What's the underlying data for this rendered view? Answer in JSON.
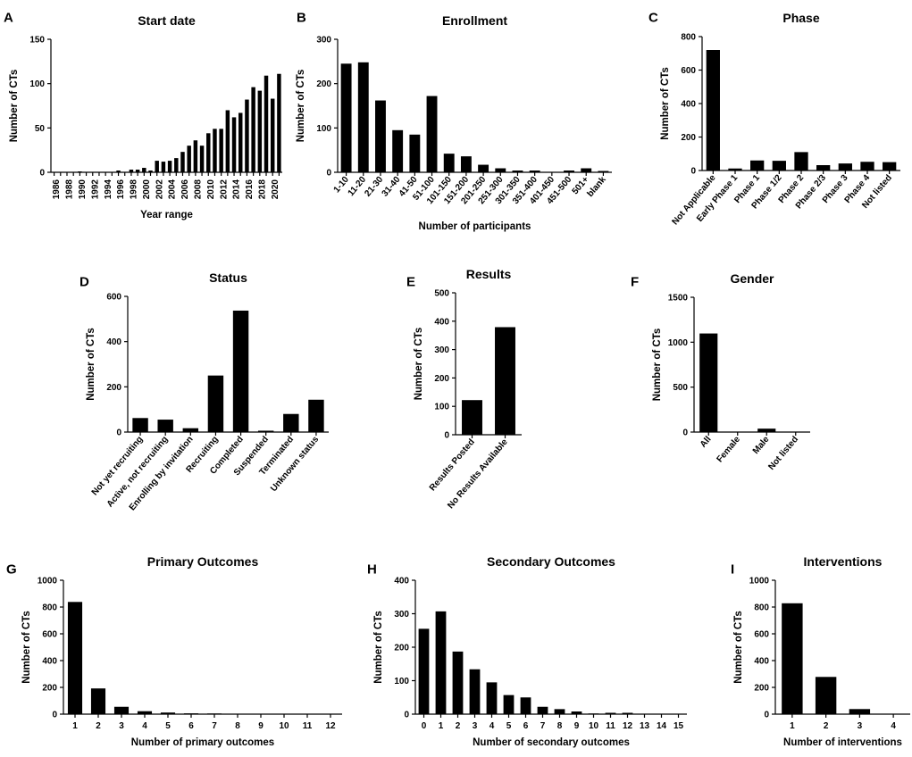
{
  "chart_data": [
    {
      "id": "A",
      "letter": "A",
      "type": "bar",
      "title": "Start date",
      "xlabel": "Year range",
      "ylabel": "Number of CTs",
      "ylim": [
        0,
        150
      ],
      "yticks": [
        0,
        50,
        100,
        150
      ],
      "categories": [
        "1986",
        "1987",
        "1988",
        "1989",
        "1990",
        "1991",
        "1992",
        "1993",
        "1994",
        "1995",
        "1996",
        "1997",
        "1998",
        "1999",
        "2000",
        "2001",
        "2002",
        "2003",
        "2004",
        "2005",
        "2006",
        "2007",
        "2008",
        "2009",
        "2010",
        "2011",
        "2012",
        "2013",
        "2014",
        "2015",
        "2016",
        "2017",
        "2018",
        "2019",
        "2020",
        "2021"
      ],
      "xtick_labels": [
        "1986",
        "",
        "1988",
        "",
        "1990",
        "",
        "1992",
        "",
        "1994",
        "",
        "1996",
        "",
        "1998",
        "",
        "2000",
        "",
        "2002",
        "",
        "2004",
        "",
        "2006",
        "",
        "2008",
        "",
        "2010",
        "",
        "2012",
        "",
        "2014",
        "",
        "2016",
        "",
        "2018",
        "",
        "2020",
        ""
      ],
      "values": [
        0,
        0,
        0,
        0,
        1,
        0,
        0,
        0,
        0,
        0,
        2,
        0,
        3,
        3,
        5,
        2,
        13,
        12,
        13,
        16,
        23,
        30,
        36,
        30,
        44,
        49,
        49,
        70,
        62,
        67,
        82,
        96,
        92,
        109,
        83,
        111
      ]
    },
    {
      "id": "B",
      "letter": "B",
      "type": "bar",
      "title": "Enrollment",
      "xlabel": "Number of participants",
      "ylabel": "Number of CTs",
      "ylim": [
        0,
        300
      ],
      "yticks": [
        0,
        100,
        200,
        300
      ],
      "categories": [
        "1-10",
        "11-20",
        "21-30",
        "31-40",
        "41-50",
        "51-100",
        "101-150",
        "151-200",
        "201-250",
        "251-300",
        "301-350",
        "351-400",
        "401-450",
        "451-500",
        "501+",
        "blank"
      ],
      "values": [
        245,
        248,
        162,
        95,
        85,
        172,
        42,
        36,
        17,
        9,
        4,
        4,
        0,
        4,
        9,
        3
      ]
    },
    {
      "id": "C",
      "letter": "C",
      "type": "bar",
      "title": "Phase",
      "xlabel": "",
      "ylabel": "Number of CTs",
      "ylim": [
        0,
        800
      ],
      "yticks": [
        0,
        200,
        400,
        600,
        800
      ],
      "categories": [
        "Not Applicable",
        "Early Phase 1",
        "Phase 1",
        "Phase 1/2",
        "Phase 2",
        "Phase 2/3",
        "Phase 3",
        "Phase 4",
        "Not listed"
      ],
      "values": [
        720,
        12,
        60,
        58,
        110,
        32,
        42,
        52,
        50
      ]
    },
    {
      "id": "D",
      "letter": "D",
      "type": "bar",
      "title": "Status",
      "xlabel": "",
      "ylabel": "Number of CTs",
      "ylim": [
        0,
        600
      ],
      "yticks": [
        0,
        200,
        400,
        600
      ],
      "categories": [
        "Not yet recruiting",
        "Active, not recruiting",
        "Enrolling by invitation",
        "Recruiting",
        "Completed",
        "Suspended",
        "Terminated",
        "Unknown status"
      ],
      "values": [
        62,
        55,
        17,
        250,
        537,
        6,
        80,
        143
      ]
    },
    {
      "id": "E",
      "letter": "E",
      "type": "bar",
      "title": "Results",
      "xlabel": "",
      "ylabel": "Number of CTs",
      "ylim": [
        0,
        500
      ],
      "yticks": [
        0,
        100,
        200,
        300,
        400,
        500
      ],
      "categories": [
        "Results Posted",
        "No Results Available"
      ],
      "values": [
        122,
        379
      ]
    },
    {
      "id": "F",
      "letter": "F",
      "type": "bar",
      "title": "Gender",
      "xlabel": "",
      "ylabel": "Number of CTs",
      "ylim": [
        0,
        1500
      ],
      "yticks": [
        0,
        500,
        1000,
        1500
      ],
      "categories": [
        "All",
        "Female",
        "Male",
        "Not listed"
      ],
      "values": [
        1097,
        0,
        38,
        0
      ]
    },
    {
      "id": "G",
      "letter": "G",
      "type": "bar",
      "title": "Primary Outcomes",
      "xlabel": "Number of primary outcomes",
      "ylabel": "Number of CTs",
      "ylim": [
        0,
        1000
      ],
      "yticks": [
        0,
        200,
        400,
        600,
        800,
        1000
      ],
      "categories": [
        "1",
        "2",
        "3",
        "4",
        "5",
        "6",
        "7",
        "8",
        "9",
        "10",
        "11",
        "12"
      ],
      "values": [
        838,
        192,
        55,
        22,
        12,
        6,
        5,
        2,
        1,
        1,
        1,
        1
      ]
    },
    {
      "id": "H",
      "letter": "H",
      "type": "bar",
      "title": "Secondary Outcomes",
      "xlabel": "Number of secondary outcomes",
      "ylabel": "Number of CTs",
      "ylim": [
        0,
        400
      ],
      "yticks": [
        0,
        100,
        200,
        300,
        400
      ],
      "categories": [
        "0",
        "1",
        "2",
        "3",
        "4",
        "5",
        "6",
        "7",
        "8",
        "9",
        "10",
        "11",
        "12",
        "13",
        "14",
        "15"
      ],
      "values": [
        255,
        307,
        187,
        134,
        95,
        57,
        50,
        22,
        15,
        8,
        2,
        4,
        4,
        1,
        1,
        1
      ]
    },
    {
      "id": "I",
      "letter": "I",
      "type": "bar",
      "title": "Interventions",
      "xlabel": "Number of interventions",
      "ylabel": "Number of CTs",
      "ylim": [
        0,
        1000
      ],
      "yticks": [
        0,
        200,
        400,
        600,
        800,
        1000
      ],
      "categories": [
        "1",
        "2",
        "3",
        "4"
      ],
      "values": [
        828,
        278,
        38,
        1
      ]
    }
  ]
}
